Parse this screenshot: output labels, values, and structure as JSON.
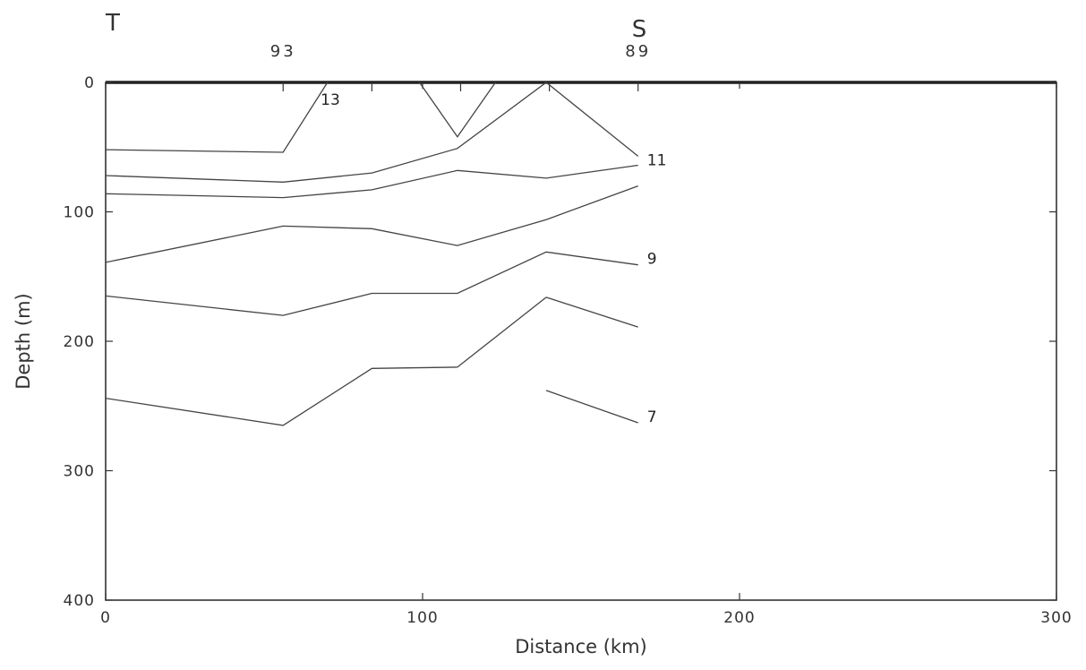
{
  "chart_data": {
    "type": "line",
    "title": "",
    "xlabel": "Distance (km)",
    "ylabel": "Depth (m)",
    "xlim": [
      0,
      300
    ],
    "ylim": [
      0,
      400
    ],
    "y_inverted": true,
    "grid": false,
    "x_ticks": [
      "0",
      "100",
      "200",
      "300"
    ],
    "y_ticks": [
      "0",
      "100",
      "200",
      "300",
      "400"
    ],
    "corner_labels": {
      "left": "T",
      "right": "S"
    },
    "stations": [
      {
        "label": "93",
        "x": 56
      },
      {
        "label": "89",
        "x": 168
      }
    ],
    "station_tick_x": [
      56,
      84,
      112,
      140,
      168
    ],
    "contour_labels": [
      {
        "text": "13",
        "x": 67,
        "y": 13
      },
      {
        "text": "11",
        "x": 170,
        "y": 60
      },
      {
        "text": "9",
        "x": 170,
        "y": 136
      },
      {
        "text": "7",
        "x": 170,
        "y": 258
      }
    ],
    "series": [
      {
        "x": [
          0,
          56,
          70
        ],
        "y": [
          52,
          54,
          0
        ]
      },
      {
        "x": [
          99,
          111,
          123
        ],
        "y": [
          0,
          42,
          0
        ]
      },
      {
        "x": [
          0,
          56,
          84,
          111,
          139,
          168
        ],
        "y": [
          72,
          77,
          70,
          51,
          0,
          57
        ]
      },
      {
        "x": [
          0,
          56,
          84,
          111,
          139,
          168
        ],
        "y": [
          86,
          89,
          83,
          68,
          74,
          64
        ]
      },
      {
        "x": [
          0,
          56,
          84,
          111,
          139,
          168
        ],
        "y": [
          139,
          111,
          113,
          126,
          106,
          80
        ]
      },
      {
        "x": [
          0,
          56,
          84,
          111,
          139,
          168
        ],
        "y": [
          165,
          180,
          163,
          163,
          131,
          141
        ]
      },
      {
        "x": [
          139,
          168
        ],
        "y": [
          166,
          189
        ]
      },
      {
        "x": [
          0,
          56,
          84,
          111,
          139
        ],
        "y": [
          244,
          265,
          221,
          220,
          166
        ]
      },
      {
        "x": [
          139,
          168
        ],
        "y": [
          238,
          263
        ]
      }
    ]
  }
}
